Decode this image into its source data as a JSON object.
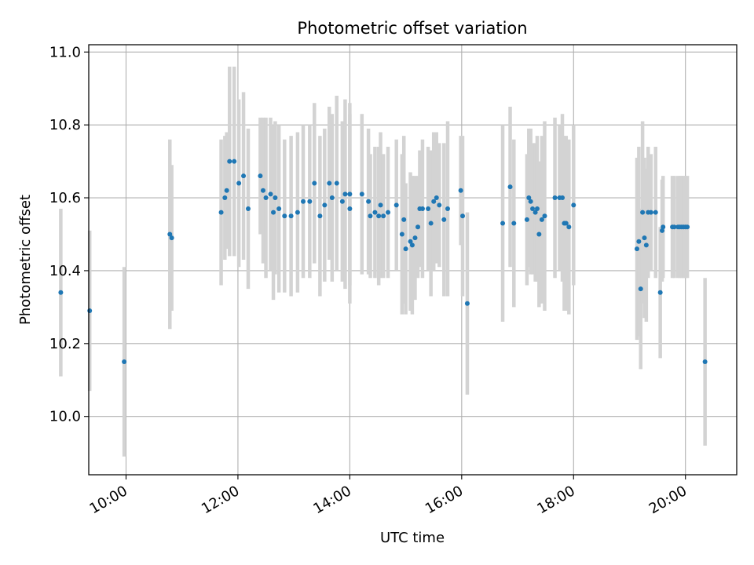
{
  "chart_data": {
    "type": "scatter",
    "title": "Photometric offset variation",
    "xlabel": "UTC time",
    "ylabel": "Photometric offset",
    "xlim": [
      "09:20",
      "20:55"
    ],
    "ylim": [
      9.84,
      11.02
    ],
    "grid": true,
    "x_ticks": [
      "10:00",
      "12:00",
      "14:00",
      "16:00",
      "18:00",
      "20:00"
    ],
    "y_ticks": [
      "10.0",
      "10.2",
      "10.4",
      "10.6",
      "10.8",
      "11.0"
    ],
    "colors": {
      "points": "#1f77b4",
      "errorbars": "#d3d3d3",
      "grid": "#b0b0b0"
    },
    "series": [
      {
        "x": [
          "08:50",
          "09:21",
          "09:58",
          "10:47",
          "10:49",
          "11:42",
          "11:46",
          "11:48",
          "11:51",
          "11:56",
          "12:01",
          "12:06",
          "12:11",
          "12:24",
          "12:27",
          "12:30",
          "12:35",
          "12:38",
          "12:40",
          "12:44",
          "12:50",
          "12:57",
          "13:04",
          "13:10",
          "13:17",
          "13:22",
          "13:28",
          "13:33",
          "13:38",
          "13:41",
          "13:46",
          "13:52",
          "13:55",
          "14:00",
          "14:00",
          "14:13",
          "14:20",
          "14:22",
          "14:27",
          "14:31",
          "14:33",
          "14:36",
          "14:41",
          "14:50",
          "14:56",
          "14:58",
          "15:00",
          "15:05",
          "15:07",
          "15:10",
          "15:13",
          "15:15",
          "15:18",
          "15:24",
          "15:27",
          "15:30",
          "15:33",
          "15:36",
          "15:41",
          "15:45",
          "15:59",
          "16:01",
          "16:06",
          "16:44",
          "16:52",
          "16:56",
          "17:10",
          "17:12",
          "17:14",
          "17:16",
          "17:19",
          "17:21",
          "17:23",
          "17:26",
          "17:29",
          "17:40",
          "17:45",
          "17:48",
          "17:50",
          "17:52",
          "17:55",
          "18:00",
          "19:08",
          "19:10",
          "19:12",
          "19:14",
          "19:16",
          "19:18",
          "19:20",
          "19:23",
          "19:28",
          "19:33",
          "19:35",
          "19:36",
          "19:46",
          "19:48",
          "19:52",
          "19:54",
          "19:56",
          "19:58",
          "20:00",
          "20:02",
          "20:21"
        ],
        "y": [
          10.34,
          10.29,
          10.15,
          10.5,
          10.49,
          10.56,
          10.6,
          10.62,
          10.7,
          10.7,
          10.64,
          10.66,
          10.57,
          10.66,
          10.62,
          10.6,
          10.61,
          10.56,
          10.6,
          10.57,
          10.55,
          10.55,
          10.56,
          10.59,
          10.59,
          10.64,
          10.55,
          10.58,
          10.64,
          10.6,
          10.64,
          10.59,
          10.61,
          10.57,
          10.61,
          10.61,
          10.59,
          10.55,
          10.56,
          10.55,
          10.58,
          10.55,
          10.56,
          10.58,
          10.5,
          10.54,
          10.46,
          10.48,
          10.47,
          10.49,
          10.52,
          10.57,
          10.57,
          10.57,
          10.53,
          10.59,
          10.6,
          10.58,
          10.54,
          10.57,
          10.62,
          10.55,
          10.31,
          10.53,
          10.63,
          10.53,
          10.54,
          10.6,
          10.59,
          10.57,
          10.56,
          10.57,
          10.5,
          10.54,
          10.55,
          10.6,
          10.6,
          10.6,
          10.53,
          10.53,
          10.52,
          10.58,
          10.46,
          10.48,
          10.35,
          10.56,
          10.49,
          10.47,
          10.56,
          10.56,
          10.56,
          10.34,
          10.51,
          10.52,
          10.52,
          10.52,
          10.52,
          10.52,
          10.52,
          10.52,
          10.52,
          10.52,
          10.15
        ],
        "err": [
          0.23,
          0.22,
          0.26,
          0.26,
          0.2,
          0.2,
          0.17,
          0.16,
          0.26,
          0.26,
          0.23,
          0.23,
          0.22,
          0.16,
          0.2,
          0.22,
          0.21,
          0.24,
          0.21,
          0.23,
          0.21,
          0.22,
          0.22,
          0.21,
          0.21,
          0.22,
          0.22,
          0.21,
          0.21,
          0.23,
          0.24,
          0.22,
          0.26,
          0.26,
          0.25,
          0.22,
          0.2,
          0.17,
          0.18,
          0.19,
          0.2,
          0.17,
          0.18,
          0.18,
          0.22,
          0.23,
          0.18,
          0.19,
          0.19,
          0.17,
          0.14,
          0.16,
          0.19,
          0.17,
          0.2,
          0.19,
          0.18,
          0.17,
          0.21,
          0.24,
          0.15,
          0.22,
          0.25,
          0.27,
          0.22,
          0.23,
          0.18,
          0.19,
          0.2,
          0.18,
          0.19,
          0.2,
          0.2,
          0.23,
          0.26,
          0.22,
          0.2,
          0.23,
          0.24,
          0.24,
          0.24,
          0.22,
          0.25,
          0.26,
          0.22,
          0.25,
          0.22,
          0.21,
          0.18,
          0.16,
          0.18,
          0.18,
          0.14,
          0.14,
          0.14,
          0.14,
          0.14,
          0.14,
          0.14,
          0.14,
          0.14,
          0.14,
          0.23
        ]
      }
    ]
  }
}
